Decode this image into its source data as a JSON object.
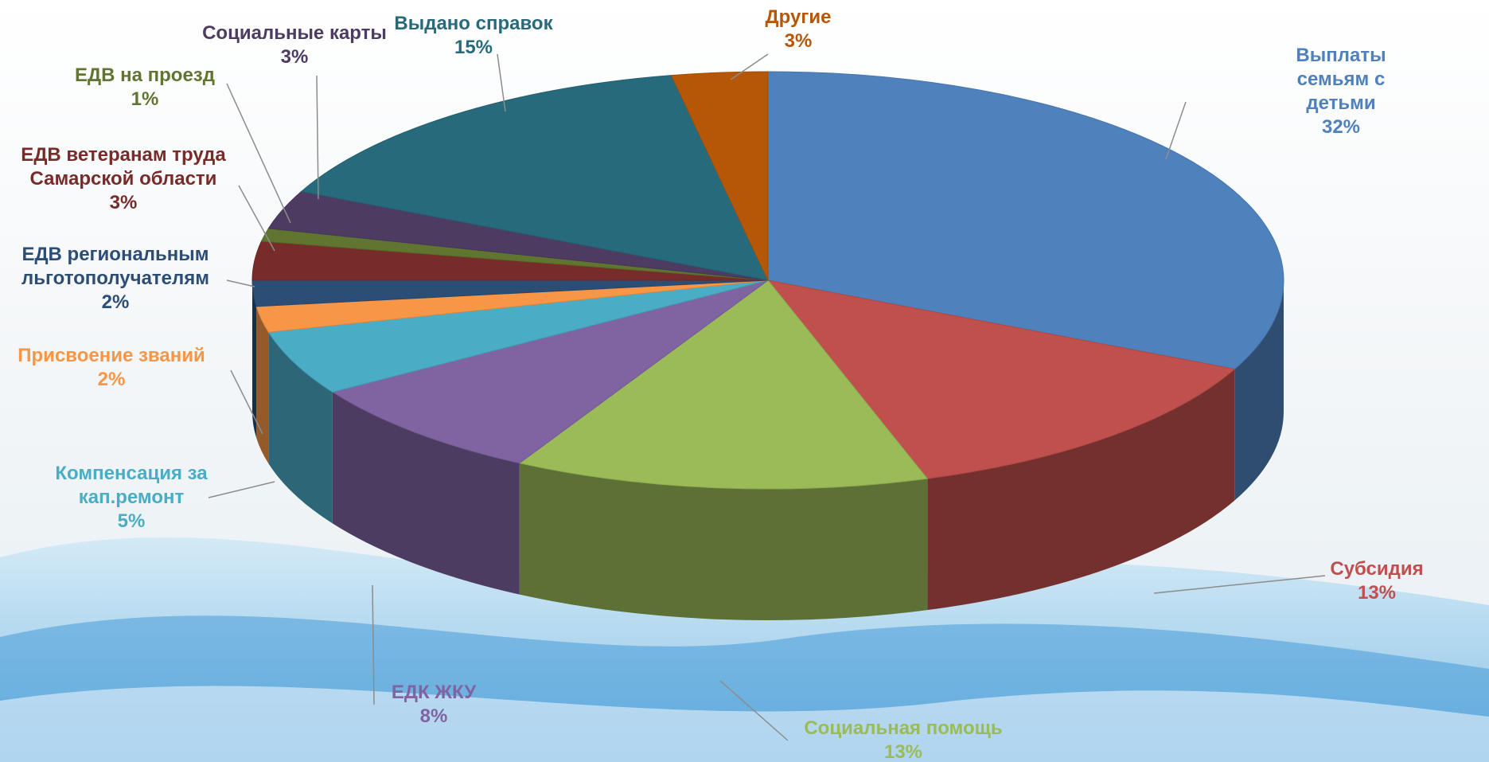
{
  "chart_data": {
    "type": "pie3d",
    "categories": [
      "Выплаты семьям с детьми",
      "Субсидия",
      "Социальная помощь",
      "ЕДК ЖКУ",
      "Компенсация за\nкап.ремонт",
      "Присвоение званий",
      "ЕДВ региональным\nльготополучателям",
      "ЕДВ ветеранам труда\nСамарской области",
      "ЕДВ на проезд",
      "Социальные карты",
      "Выдано справок",
      "Другие"
    ],
    "values": [
      32,
      13,
      13,
      8,
      5,
      2,
      2,
      3,
      1,
      3,
      15,
      3
    ],
    "value_labels": [
      "32%",
      "13%",
      "13%",
      "8%",
      "5%",
      "2%",
      "2%",
      "3%",
      "1%",
      "3%",
      "15%",
      "3%"
    ],
    "colors": [
      "#4f81bd",
      "#c0504d",
      "#9bbb59",
      "#8064a2",
      "#4bacc6",
      "#f79646",
      "#2c4d75",
      "#772c2a",
      "#5f7530",
      "#4d3b62",
      "#276a7c",
      "#b65708"
    ]
  }
}
